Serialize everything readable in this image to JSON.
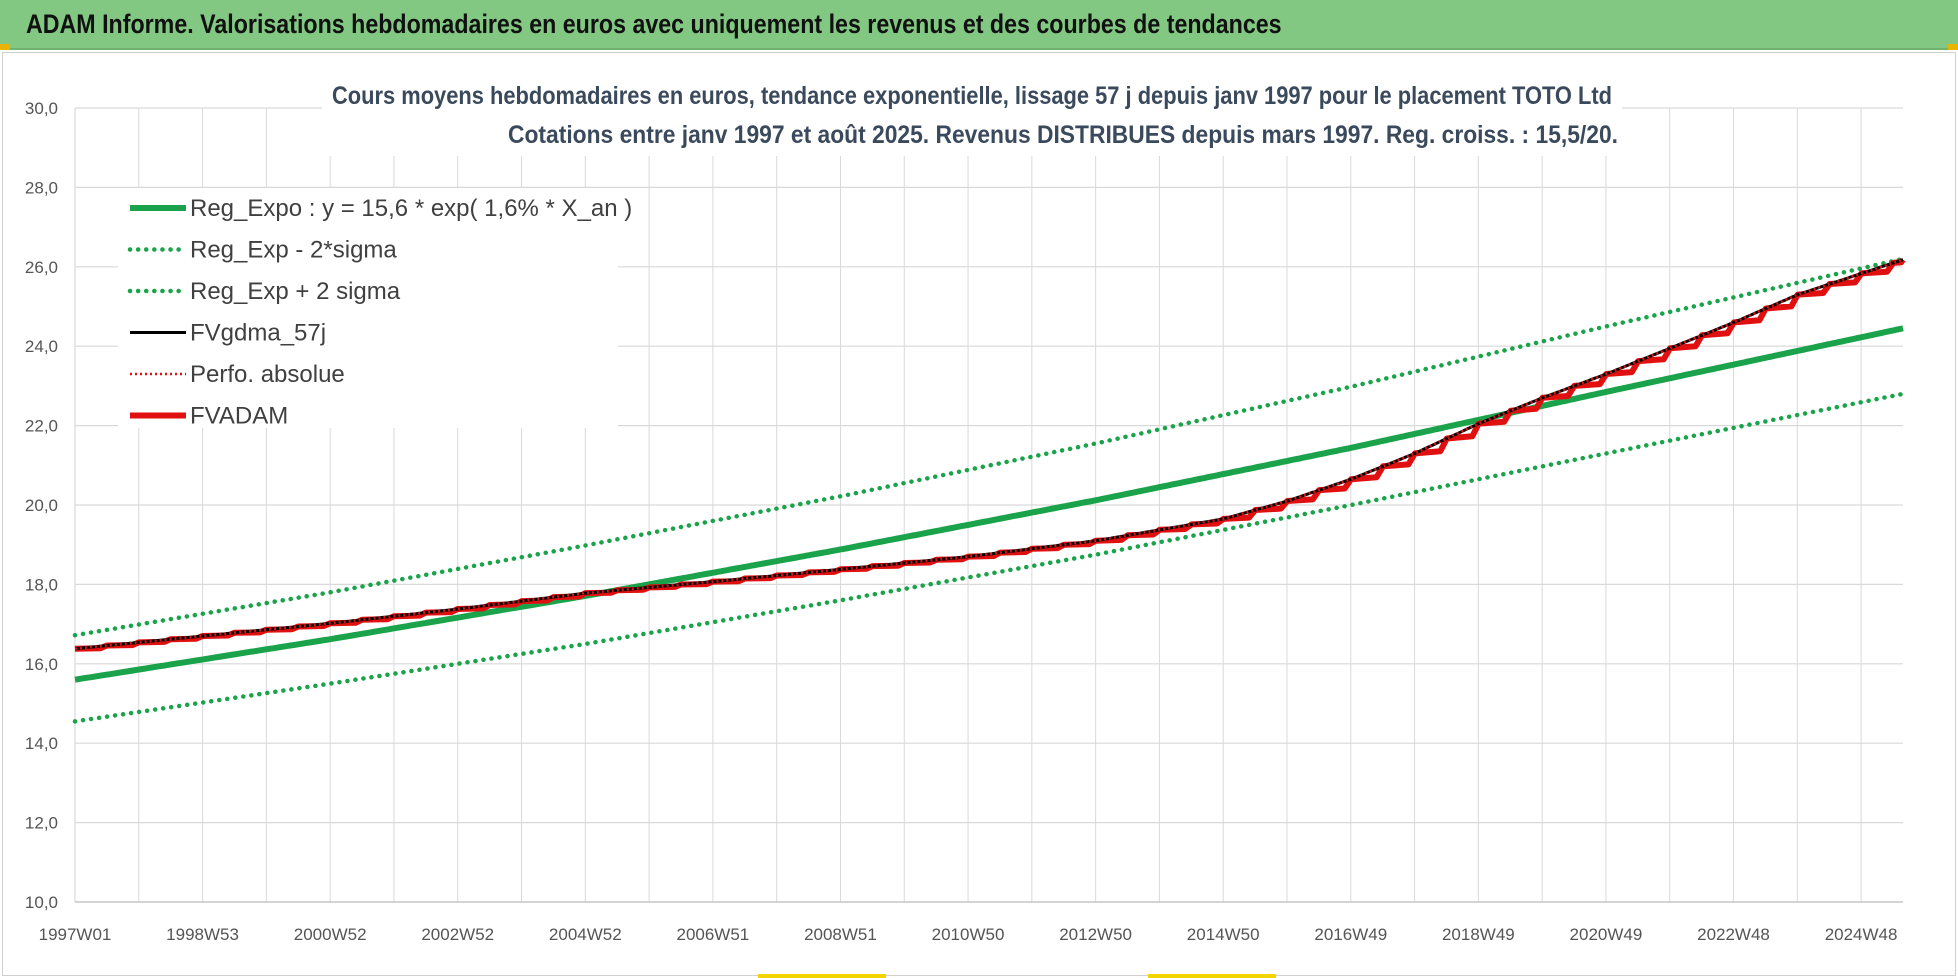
{
  "header": {
    "title": "ADAM Informe. Valorisations hebdomadaires en euros avec uniquement les revenus et des courbes de tendances"
  },
  "colors": {
    "banner": "#82c882",
    "green": "#1aa34a",
    "black": "#000000",
    "red": "#e01010",
    "grid": "#d9d9d9"
  },
  "chart_data": {
    "type": "line",
    "title": "Cours moyens hebdomadaires en euros, tendance exponentielle, lissage 57 j depuis janv 1997 pour le placement TOTO Ltd",
    "subtitle": "Cotations entre janv 1997 et août 2025.  Revenus DISTRIBUES depuis mars 1997. Reg. croiss. : 15,5/20.",
    "xlabel": "",
    "ylabel": "",
    "x_tick_labels": [
      "1997W01",
      "1998W53",
      "2000W52",
      "2002W52",
      "2004W52",
      "2006W51",
      "2008W51",
      "2010W50",
      "2012W50",
      "2014W50",
      "2016W49",
      "2018W49",
      "2020W49",
      "2022W48",
      "2024W48"
    ],
    "x_range_years": [
      1997.0,
      2025.65
    ],
    "ylim": [
      10.0,
      30.0
    ],
    "y_ticks": [
      "10,0",
      "12,0",
      "14,0",
      "16,0",
      "18,0",
      "20,0",
      "22,0",
      "24,0",
      "26,0",
      "28,0",
      "30,0"
    ],
    "grid": true,
    "legend_position": "top-left",
    "series": [
      {
        "name": "Reg_Expo : y = 15,6 * exp( 1,6% *  X_an )",
        "style": "solid-thick",
        "color": "#1aa34a",
        "x_years": [
          1997.0,
          2001.0,
          2005.0,
          2009.0,
          2013.0,
          2017.0,
          2021.0,
          2025.65
        ],
        "values": [
          15.6,
          16.62,
          17.71,
          18.88,
          20.12,
          21.44,
          22.85,
          24.45
        ]
      },
      {
        "name": "Reg_Exp - 2*sigma",
        "style": "dotted",
        "color": "#1aa34a",
        "x_years": [
          1997.0,
          2001.0,
          2005.0,
          2009.0,
          2013.0,
          2017.0,
          2021.0,
          2025.65
        ],
        "values": [
          14.55,
          15.5,
          16.5,
          17.6,
          18.75,
          20.0,
          21.3,
          22.8
        ]
      },
      {
        "name": "Reg_Exp + 2 sigma",
        "style": "dotted",
        "color": "#1aa34a",
        "x_years": [
          1997.0,
          2001.0,
          2005.0,
          2009.0,
          2013.0,
          2017.0,
          2021.0,
          2025.65
        ],
        "values": [
          16.72,
          17.8,
          18.98,
          20.22,
          21.55,
          22.98,
          24.5,
          26.2
        ]
      },
      {
        "name": "FVgdma_57j",
        "style": "solid",
        "color": "#000000",
        "x_years": [
          1997.0,
          1999.0,
          2001.0,
          2003.0,
          2005.0,
          2007.0,
          2009.0,
          2011.0,
          2013.0,
          2015.0,
          2016.0,
          2017.0,
          2018.0,
          2019.0,
          2020.0,
          2021.0,
          2022.0,
          2023.0,
          2024.0,
          2025.65
        ],
        "values": [
          16.38,
          16.7,
          17.02,
          17.38,
          17.78,
          18.07,
          18.38,
          18.7,
          19.1,
          19.65,
          20.1,
          20.65,
          21.3,
          22.05,
          22.7,
          23.3,
          23.95,
          24.6,
          25.3,
          26.18
        ]
      },
      {
        "name": "Perfo. absolue",
        "style": "dotted-thin",
        "color": "#e01010",
        "x_years": [
          1997.0,
          1999.0,
          2001.0,
          2003.0,
          2005.0,
          2007.0,
          2009.0,
          2011.0,
          2013.0,
          2015.0,
          2016.0,
          2017.0,
          2018.0,
          2019.0,
          2020.0,
          2021.0,
          2022.0,
          2023.0,
          2024.0,
          2025.65
        ],
        "values": [
          16.38,
          16.7,
          17.02,
          17.38,
          17.78,
          18.07,
          18.38,
          18.7,
          19.1,
          19.65,
          20.1,
          20.65,
          21.3,
          22.05,
          22.7,
          23.3,
          23.95,
          24.6,
          25.3,
          26.18
        ]
      },
      {
        "name": "FVADAM",
        "style": "solid-thick-step",
        "color": "#e01010",
        "x_years": [
          1997.0,
          1999.0,
          2001.0,
          2003.0,
          2005.0,
          2007.0,
          2009.0,
          2011.0,
          2013.0,
          2015.0,
          2016.0,
          2017.0,
          2018.0,
          2019.0,
          2020.0,
          2021.0,
          2022.0,
          2023.0,
          2024.0,
          2025.65
        ],
        "values": [
          16.38,
          16.7,
          17.02,
          17.38,
          17.78,
          18.07,
          18.38,
          18.7,
          19.1,
          19.65,
          20.1,
          20.65,
          21.3,
          22.05,
          22.7,
          23.3,
          23.95,
          24.6,
          25.3,
          26.18
        ]
      }
    ]
  }
}
